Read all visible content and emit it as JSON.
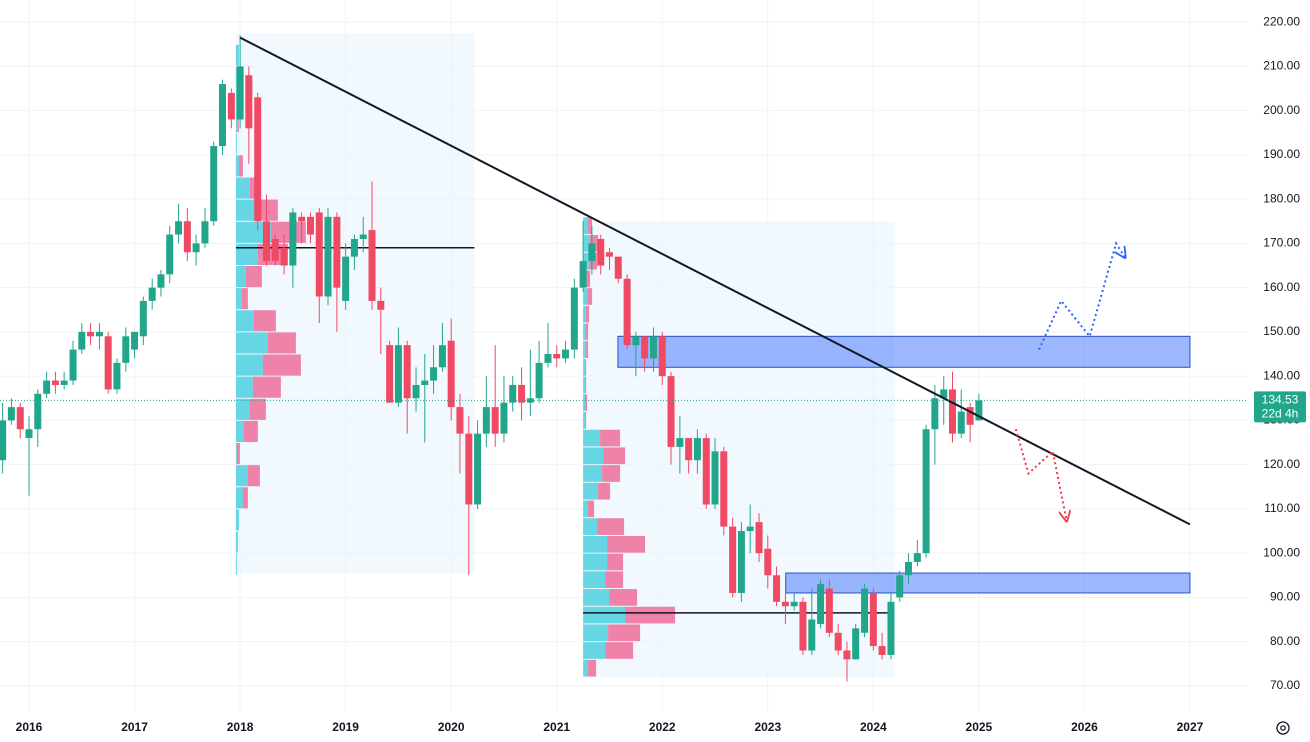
{
  "chart_data": {
    "type": "candlestick",
    "xlim": [
      2015.725,
      2027.55
    ],
    "ylim": [
      64.1,
      225
    ],
    "xticks": [
      2016,
      2017,
      2018,
      2019,
      2020,
      2021,
      2022,
      2023,
      2024,
      2025,
      2026,
      2027
    ],
    "yticks": [
      {
        "value": 70,
        "label": "70.00"
      },
      {
        "value": 80,
        "label": "80.00"
      },
      {
        "value": 90,
        "label": "90.00"
      },
      {
        "value": 100,
        "label": "100.00"
      },
      {
        "value": 110,
        "label": "110.00"
      },
      {
        "value": 120,
        "label": "120.00"
      },
      {
        "value": 130,
        "label": "130.00"
      },
      {
        "value": 140,
        "label": "140.00"
      },
      {
        "value": 150,
        "label": "150.00"
      },
      {
        "value": 160,
        "label": "160.00"
      },
      {
        "value": 170,
        "label": "170.00"
      },
      {
        "value": 180,
        "label": "180.00"
      },
      {
        "value": 190,
        "label": "190.00"
      },
      {
        "value": 200,
        "label": "200.00"
      },
      {
        "value": 210,
        "label": "210.00"
      },
      {
        "value": 220,
        "label": "220.00"
      }
    ],
    "grid": true,
    "up_color": "#22a68b",
    "down_color": "#ef4964",
    "x": [
      2015.75,
      2015.833,
      2015.917,
      2016,
      2016.083,
      2016.167,
      2016.25,
      2016.333,
      2016.417,
      2016.5,
      2016.583,
      2016.667,
      2016.75,
      2016.833,
      2016.917,
      2017,
      2017.083,
      2017.167,
      2017.25,
      2017.333,
      2017.417,
      2017.5,
      2017.583,
      2017.667,
      2017.75,
      2017.833,
      2017.917,
      2018,
      2018.083,
      2018.167,
      2018.25,
      2018.333,
      2018.417,
      2018.5,
      2018.583,
      2018.667,
      2018.75,
      2018.833,
      2018.917,
      2019,
      2019.083,
      2019.167,
      2019.25,
      2019.333,
      2019.417,
      2019.5,
      2019.583,
      2019.667,
      2019.75,
      2019.833,
      2019.917,
      2020,
      2020.083,
      2020.167,
      2020.25,
      2020.333,
      2020.417,
      2020.5,
      2020.583,
      2020.667,
      2020.75,
      2020.833,
      2020.917,
      2021,
      2021.083,
      2021.167,
      2021.25,
      2021.333,
      2021.417,
      2021.5,
      2021.583,
      2021.667,
      2021.75,
      2021.833,
      2021.917,
      2022,
      2022.083,
      2022.167,
      2022.25,
      2022.333,
      2022.417,
      2022.5,
      2022.583,
      2022.667,
      2022.75,
      2022.833,
      2022.917,
      2023,
      2023.083,
      2023.167,
      2023.25,
      2023.333,
      2023.417,
      2023.5,
      2023.583,
      2023.667,
      2023.75,
      2023.833,
      2023.917,
      2024,
      2024.083,
      2024.167,
      2024.25,
      2024.333,
      2024.417,
      2024.5,
      2024.583,
      2024.667,
      2024.75,
      2024.833,
      2024.917,
      2025
    ],
    "open": [
      121,
      130,
      133,
      126,
      128,
      136,
      139,
      138,
      139,
      146,
      150,
      149,
      149,
      137,
      143,
      146,
      149,
      157,
      160,
      163,
      172,
      175,
      168,
      170,
      175,
      192,
      204,
      198,
      208,
      203,
      175,
      171,
      169,
      165,
      176,
      176,
      177,
      158,
      176,
      157,
      167,
      171,
      173,
      157,
      147,
      134,
      147,
      135,
      138,
      139,
      142,
      148,
      133,
      127,
      111,
      127,
      133,
      127,
      134,
      138,
      134,
      135,
      143,
      145,
      144,
      146,
      160,
      166,
      171,
      168,
      167,
      162,
      147,
      149,
      144,
      149,
      140,
      124,
      126,
      121,
      126,
      111,
      123,
      106,
      91,
      105,
      107,
      101,
      95,
      89,
      88,
      89,
      78,
      84,
      92,
      82,
      78,
      76,
      82,
      91,
      79,
      77,
      90,
      95,
      98,
      100,
      128,
      135,
      137,
      127,
      133,
      130
    ],
    "high": [
      134,
      135,
      134,
      131,
      137,
      141,
      141,
      141,
      148,
      152,
      152,
      152,
      150,
      144,
      151,
      150,
      158,
      162,
      164,
      174,
      179,
      178,
      172,
      178,
      193,
      207,
      205,
      217,
      210,
      204,
      181,
      172,
      172,
      178,
      177,
      177,
      178,
      178,
      177,
      170,
      172,
      176,
      184,
      160,
      148,
      151,
      148,
      142,
      145,
      147,
      152,
      153,
      136,
      131,
      130,
      140,
      147,
      140,
      140,
      142,
      146,
      148,
      152,
      147,
      148,
      162,
      175,
      174,
      172,
      169,
      167,
      163,
      150,
      149,
      151,
      150,
      141,
      131,
      126,
      128,
      127,
      126,
      124,
      108,
      107,
      111,
      109,
      104,
      97,
      91,
      91,
      90,
      92,
      94,
      94,
      84,
      80,
      84,
      93,
      92,
      82,
      91,
      96,
      100,
      103,
      129,
      138,
      140,
      141,
      137,
      134,
      136
    ],
    "low": [
      118,
      129,
      126,
      113,
      124,
      135,
      136,
      137,
      138,
      145,
      147,
      146,
      136,
      136,
      141,
      144,
      147,
      155,
      158,
      161,
      170,
      166,
      165,
      169,
      174,
      190,
      196,
      196,
      188,
      173,
      165,
      165,
      163,
      160,
      170,
      170,
      152,
      156,
      150,
      155,
      164,
      168,
      155,
      145,
      134,
      133,
      127,
      132,
      125,
      136,
      141,
      130,
      118,
      95,
      110,
      124,
      124,
      125,
      132,
      130,
      131,
      134,
      142,
      142,
      143,
      144,
      159,
      163,
      163,
      164,
      161,
      146,
      140,
      141,
      141,
      138,
      120,
      118,
      118,
      118,
      110,
      110,
      104,
      90,
      89,
      100,
      98,
      92,
      88,
      84,
      87,
      77,
      77,
      83,
      81,
      77,
      71,
      76,
      81,
      78,
      76,
      76,
      89,
      93,
      97,
      99,
      120,
      129,
      125,
      126,
      125,
      130
    ],
    "close": [
      130,
      133,
      128,
      128,
      136,
      139,
      138,
      139,
      146,
      150,
      149,
      150,
      137,
      143,
      149,
      150,
      157,
      160,
      163,
      172,
      175,
      168,
      170,
      175,
      192,
      206,
      198,
      210,
      196,
      175,
      166,
      166,
      165,
      177,
      175,
      172,
      158,
      176,
      160,
      167,
      171,
      172,
      157,
      155,
      134,
      147,
      135,
      138,
      139,
      142,
      147,
      133,
      127,
      111,
      127,
      133,
      127,
      134,
      138,
      134,
      135,
      143,
      145,
      144,
      146,
      160,
      166,
      170,
      165,
      167,
      162,
      147,
      149,
      144,
      149,
      140,
      124,
      126,
      121,
      126,
      111,
      123,
      106,
      91,
      105,
      106,
      100,
      95,
      89,
      88,
      89,
      78,
      85,
      93,
      82,
      78,
      76,
      83,
      92,
      79,
      77,
      89,
      95,
      98,
      100,
      128,
      135,
      137,
      127,
      132,
      129,
      134.53
    ],
    "countdown": "22d 4h",
    "volume_profiles": [
      {
        "x": [
          2017.96,
          2020.22
        ],
        "y": [
          95.5,
          217.5
        ],
        "poc": 169,
        "levels": [
          95,
          100,
          105,
          110,
          115,
          120,
          125,
          130,
          135,
          140,
          145,
          150,
          155,
          160,
          165,
          170,
          175,
          180,
          185,
          190,
          195,
          200,
          205,
          210
        ],
        "up": [
          1,
          2,
          3,
          7,
          12,
          1,
          8,
          14,
          17,
          27,
          32,
          18,
          6,
          10,
          22,
          35,
          22,
          14,
          3,
          1,
          2,
          2,
          3,
          3
        ],
        "down": [
          0,
          0,
          0,
          5,
          12,
          3,
          14,
          16,
          28,
          38,
          28,
          22,
          6,
          16,
          30,
          35,
          20,
          10,
          4,
          0,
          1,
          2,
          2,
          0
        ]
      },
      {
        "x": [
          2021.25,
          2024.2
        ],
        "y": [
          72,
          175
        ],
        "poc": 86.5,
        "levels": [
          72,
          76,
          80,
          84,
          88,
          92,
          96,
          100,
          104,
          108,
          112,
          116,
          120,
          124,
          128,
          132,
          136,
          140,
          144,
          148,
          152,
          156,
          160,
          164,
          168,
          172
        ],
        "up": [
          5,
          22,
          25,
          42,
          26,
          22,
          24,
          24,
          14,
          5,
          15,
          19,
          20,
          17,
          2,
          2,
          2,
          2,
          3,
          3,
          3,
          4,
          3,
          6,
          7,
          5
        ],
        "down": [
          8,
          28,
          32,
          50,
          28,
          18,
          16,
          38,
          27,
          6,
          12,
          18,
          22,
          20,
          1,
          2,
          1,
          1,
          2,
          2,
          3,
          5,
          4,
          8,
          8,
          4
        ]
      }
    ],
    "zones": [
      {
        "x": [
          2021.58,
          2027
        ],
        "y": [
          142,
          149
        ]
      },
      {
        "x": [
          2023.17,
          2027
        ],
        "y": [
          91,
          95.5
        ]
      }
    ],
    "trend_line": {
      "x": [
        2018,
        2027
      ],
      "y": [
        216.5,
        106.5
      ]
    },
    "projections": [
      {
        "color": "#2962ff",
        "x": [
          2025.57,
          2025.78,
          2026.05,
          2026.3,
          2026.38
        ],
        "y": [
          146,
          157,
          149,
          170,
          167
        ]
      },
      {
        "color": "#f23645",
        "x": [
          2025.35,
          2025.47,
          2025.7,
          2025.83
        ],
        "y": [
          128,
          118,
          123,
          107.5
        ]
      }
    ]
  }
}
